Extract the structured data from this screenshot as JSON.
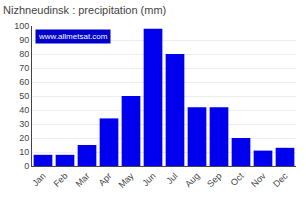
{
  "chart_data": {
    "type": "bar",
    "title": "Nizhneudinsk : precipitation (mm)",
    "categories": [
      "Jan",
      "Feb",
      "Mar",
      "Apr",
      "May",
      "Jun",
      "Jul",
      "Aug",
      "Sep",
      "Oct",
      "Nov",
      "Dec"
    ],
    "values": [
      8,
      8,
      15,
      34,
      50,
      98,
      80,
      42,
      42,
      20,
      11,
      13
    ],
    "color": "#0000ee",
    "ylim": [
      0,
      100
    ],
    "yticks": [
      0,
      10,
      20,
      30,
      40,
      50,
      60,
      70,
      80,
      90,
      100
    ],
    "grid": true,
    "annotations": [
      "www.allmetsat.com"
    ]
  }
}
